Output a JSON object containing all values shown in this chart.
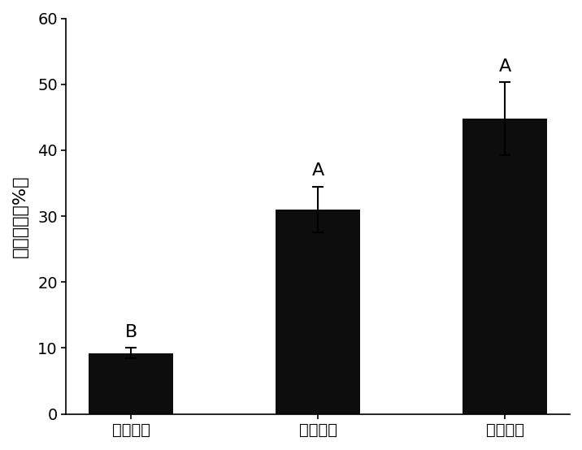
{
  "categories": [
    "失活菌剂",
    "生防菌剂",
    "化学农药"
  ],
  "values": [
    9.2,
    31.0,
    44.8
  ],
  "errors": [
    0.8,
    3.5,
    5.5
  ],
  "labels": [
    "B",
    "A",
    "A"
  ],
  "bar_color": "#0d0d0d",
  "ylabel": "防治效果（%）",
  "ylim": [
    0,
    60
  ],
  "yticks": [
    0,
    10,
    20,
    30,
    40,
    50,
    60
  ],
  "bar_width": 0.45,
  "background_color": "#ffffff",
  "label_fontsize": 16,
  "tick_fontsize": 14,
  "ylabel_fontsize": 16,
  "letter_fontsize": 16
}
